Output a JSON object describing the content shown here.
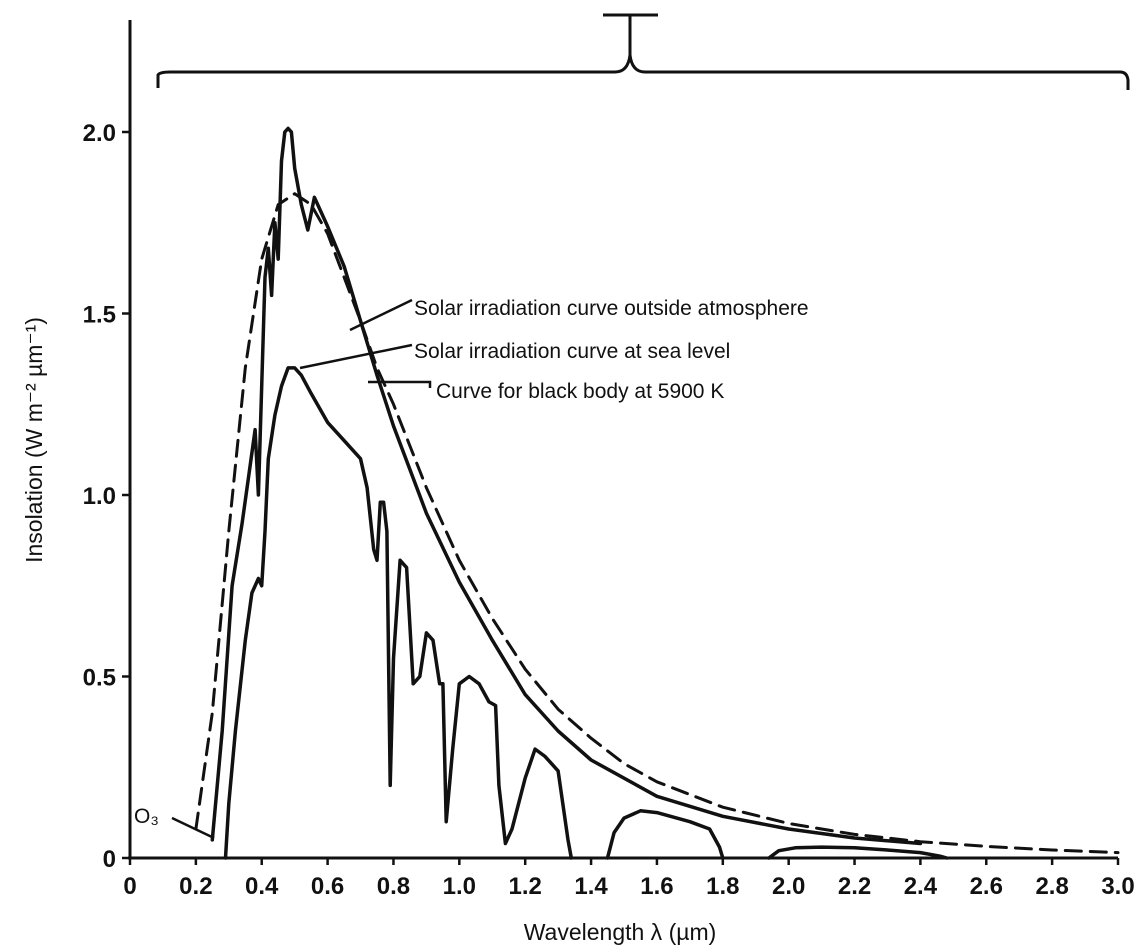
{
  "chart_data": {
    "type": "line",
    "title": "",
    "xlabel": "Wavelength λ (µm)",
    "ylabel": "Insolation (W m⁻² µm⁻¹)",
    "xlim": [
      0,
      3.0
    ],
    "ylim": [
      0,
      2.0
    ],
    "grid": false,
    "x_ticks": [
      0,
      0.2,
      0.4,
      0.6,
      0.8,
      1.0,
      1.2,
      1.4,
      1.6,
      1.8,
      2.0,
      2.2,
      2.4,
      2.6,
      2.8,
      3.0
    ],
    "x_tick_labels": [
      "0",
      "0.2",
      "0.4",
      "0.6",
      "0.8",
      "1.0",
      "1.2",
      "1.4",
      "1.6",
      "1.8",
      "2.0",
      "2.2",
      "2.4",
      "2.6",
      "2.8",
      "3.0"
    ],
    "y_ticks": [
      0,
      0.5,
      1.0,
      1.5,
      2.0
    ],
    "y_tick_labels": [
      "0",
      "0.5",
      "1.0",
      "1.5",
      "2.0"
    ],
    "series": [
      {
        "name": "Solar irradiation curve outside atmosphere",
        "style": "solid",
        "points": [
          [
            0.25,
            0.05
          ],
          [
            0.28,
            0.35
          ],
          [
            0.31,
            0.75
          ],
          [
            0.34,
            0.92
          ],
          [
            0.36,
            1.05
          ],
          [
            0.38,
            1.18
          ],
          [
            0.39,
            1.0
          ],
          [
            0.4,
            1.3
          ],
          [
            0.41,
            1.6
          ],
          [
            0.42,
            1.68
          ],
          [
            0.43,
            1.55
          ],
          [
            0.44,
            1.75
          ],
          [
            0.45,
            1.65
          ],
          [
            0.46,
            1.92
          ],
          [
            0.47,
            2.0
          ],
          [
            0.48,
            2.01
          ],
          [
            0.49,
            2.0
          ],
          [
            0.5,
            1.9
          ],
          [
            0.52,
            1.8
          ],
          [
            0.54,
            1.73
          ],
          [
            0.56,
            1.82
          ],
          [
            0.58,
            1.78
          ],
          [
            0.6,
            1.74
          ],
          [
            0.65,
            1.63
          ],
          [
            0.7,
            1.48
          ],
          [
            0.75,
            1.33
          ],
          [
            0.8,
            1.19
          ],
          [
            0.9,
            0.95
          ],
          [
            1.0,
            0.76
          ],
          [
            1.1,
            0.6
          ],
          [
            1.2,
            0.45
          ],
          [
            1.3,
            0.35
          ],
          [
            1.4,
            0.27
          ],
          [
            1.6,
            0.17
          ],
          [
            1.8,
            0.115
          ],
          [
            2.0,
            0.08
          ],
          [
            2.2,
            0.055
          ],
          [
            2.4,
            0.04
          ]
        ]
      },
      {
        "name": "Solar irradiation curve at sea level",
        "style": "solid",
        "segments": [
          [
            [
              0.29,
              0.0
            ],
            [
              0.3,
              0.15
            ],
            [
              0.32,
              0.35
            ],
            [
              0.35,
              0.6
            ],
            [
              0.37,
              0.73
            ],
            [
              0.39,
              0.77
            ],
            [
              0.4,
              0.75
            ],
            [
              0.41,
              0.9
            ],
            [
              0.42,
              1.1
            ],
            [
              0.44,
              1.22
            ],
            [
              0.46,
              1.3
            ],
            [
              0.48,
              1.35
            ],
            [
              0.5,
              1.35
            ],
            [
              0.52,
              1.33
            ],
            [
              0.55,
              1.28
            ],
            [
              0.6,
              1.2
            ],
            [
              0.65,
              1.15
            ],
            [
              0.7,
              1.1
            ],
            [
              0.72,
              1.02
            ],
            [
              0.74,
              0.85
            ],
            [
              0.75,
              0.82
            ],
            [
              0.76,
              0.98
            ],
            [
              0.77,
              0.98
            ],
            [
              0.78,
              0.9
            ],
            [
              0.79,
              0.2
            ],
            [
              0.8,
              0.55
            ],
            [
              0.82,
              0.82
            ],
            [
              0.84,
              0.8
            ],
            [
              0.86,
              0.48
            ],
            [
              0.88,
              0.5
            ],
            [
              0.9,
              0.62
            ],
            [
              0.92,
              0.6
            ],
            [
              0.94,
              0.48
            ],
            [
              0.95,
              0.48
            ],
            [
              0.96,
              0.1
            ],
            [
              0.98,
              0.3
            ],
            [
              1.0,
              0.48
            ],
            [
              1.03,
              0.5
            ],
            [
              1.06,
              0.48
            ],
            [
              1.09,
              0.43
            ],
            [
              1.11,
              0.42
            ],
            [
              1.12,
              0.2
            ],
            [
              1.14,
              0.04
            ],
            [
              1.16,
              0.08
            ],
            [
              1.2,
              0.22
            ],
            [
              1.23,
              0.3
            ],
            [
              1.26,
              0.28
            ],
            [
              1.3,
              0.24
            ],
            [
              1.33,
              0.05
            ],
            [
              1.34,
              0.0
            ]
          ],
          [
            [
              1.45,
              0.0
            ],
            [
              1.47,
              0.07
            ],
            [
              1.5,
              0.11
            ],
            [
              1.55,
              0.13
            ],
            [
              1.6,
              0.125
            ],
            [
              1.7,
              0.1
            ],
            [
              1.76,
              0.08
            ],
            [
              1.79,
              0.03
            ],
            [
              1.8,
              0.0
            ]
          ],
          [
            [
              1.94,
              0.0
            ],
            [
              1.97,
              0.02
            ],
            [
              2.02,
              0.028
            ],
            [
              2.1,
              0.03
            ],
            [
              2.2,
              0.028
            ],
            [
              2.3,
              0.022
            ],
            [
              2.4,
              0.015
            ],
            [
              2.46,
              0.005
            ],
            [
              2.48,
              0.0
            ]
          ]
        ]
      },
      {
        "name": "Curve for black body at 5900 K",
        "style": "dashed",
        "points": [
          [
            0.2,
            0.08
          ],
          [
            0.25,
            0.4
          ],
          [
            0.3,
            0.9
          ],
          [
            0.35,
            1.35
          ],
          [
            0.4,
            1.65
          ],
          [
            0.45,
            1.8
          ],
          [
            0.5,
            1.83
          ],
          [
            0.55,
            1.8
          ],
          [
            0.6,
            1.72
          ],
          [
            0.65,
            1.6
          ],
          [
            0.7,
            1.48
          ],
          [
            0.75,
            1.35
          ],
          [
            0.8,
            1.25
          ],
          [
            0.9,
            1.02
          ],
          [
            1.0,
            0.82
          ],
          [
            1.1,
            0.66
          ],
          [
            1.2,
            0.52
          ],
          [
            1.3,
            0.41
          ],
          [
            1.4,
            0.33
          ],
          [
            1.5,
            0.26
          ],
          [
            1.6,
            0.21
          ],
          [
            1.8,
            0.14
          ],
          [
            2.0,
            0.095
          ],
          [
            2.2,
            0.065
          ],
          [
            2.4,
            0.045
          ],
          [
            2.6,
            0.032
          ],
          [
            2.8,
            0.022
          ],
          [
            3.0,
            0.015
          ]
        ]
      }
    ],
    "annotations": [
      "O₃"
    ]
  },
  "labels": {
    "curve_outside": "Solar irradiation curve outside atmosphere",
    "curve_sea_level": "Solar irradiation curve at sea level",
    "curve_black_body": "Curve for black body at 5900 K",
    "ozone": "O₃"
  }
}
